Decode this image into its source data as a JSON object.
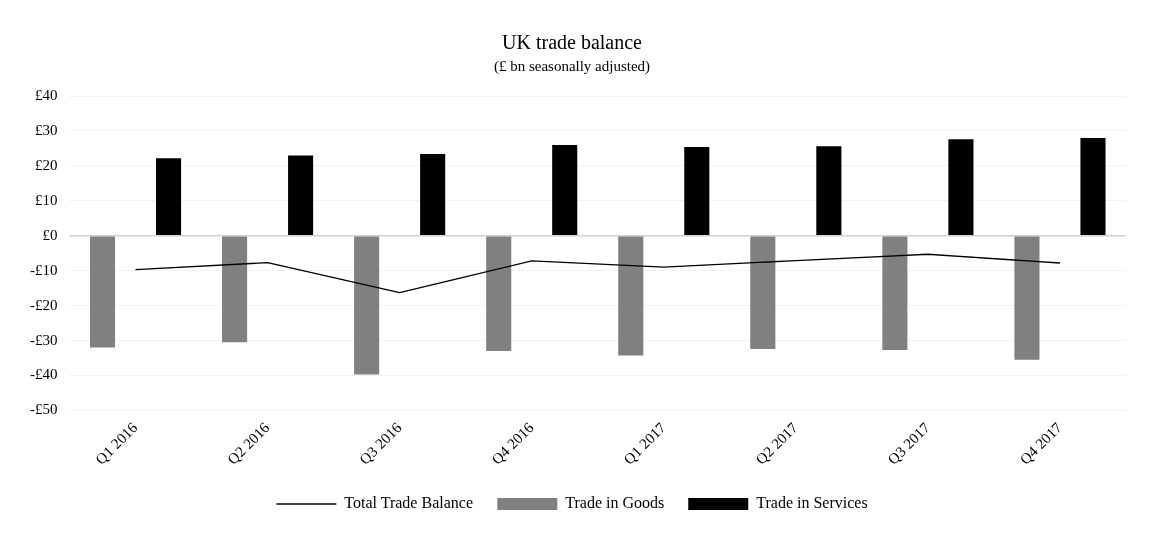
{
  "chart_data": {
    "type": "bar",
    "title": "UK trade balance",
    "subtitle": "(£ bn seasonally adjusted)",
    "categories": [
      "Q1 2016",
      "Q2 2016",
      "Q3 2016",
      "Q4 2016",
      "Q1 2017",
      "Q2 2017",
      "Q3 2017",
      "Q4 2017"
    ],
    "series": [
      {
        "name": "Trade in Goods",
        "color": "#808080",
        "values": [
          -32,
          -30.5,
          -39.7,
          -33,
          -34.3,
          -32.4,
          -32.7,
          -35.5
        ]
      },
      {
        "name": "Trade in Services",
        "color": "#000000",
        "values": [
          22.2,
          23,
          23.4,
          26,
          25.4,
          25.6,
          27.6,
          28
        ]
      },
      {
        "name": "Total Trade Balance",
        "type": "line",
        "color": "#000000",
        "line_style": "solid",
        "values": [
          -9.7,
          -7.7,
          -16.3,
          -7.2,
          -9,
          -7.1,
          -5.3,
          -7.8
        ]
      }
    ],
    "ylim": [
      -50,
      40
    ],
    "yticks": [
      {
        "value": -50,
        "label": "-£50"
      },
      {
        "value": -40,
        "label": "-£40"
      },
      {
        "value": -30,
        "label": "-£30"
      },
      {
        "value": -20,
        "label": "-£20"
      },
      {
        "value": -10,
        "label": "-£10"
      },
      {
        "value": 0,
        "label": "£0"
      },
      {
        "value": 10,
        "label": "£10"
      },
      {
        "value": 20,
        "label": "£20"
      },
      {
        "value": 30,
        "label": "£30"
      },
      {
        "value": 40,
        "label": "£40"
      }
    ],
    "grid": "y",
    "legend": "bottom"
  }
}
